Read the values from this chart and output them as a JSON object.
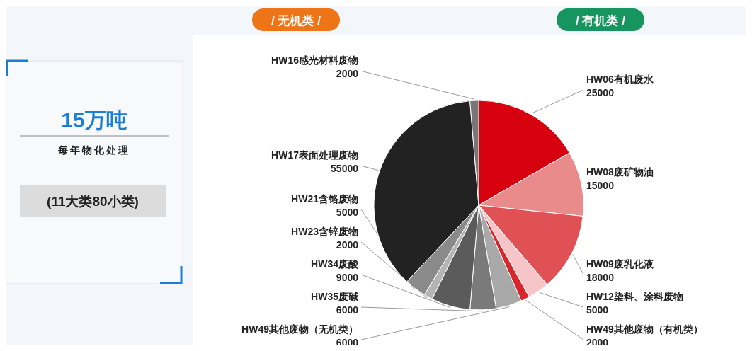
{
  "chart_data": {
    "type": "pie",
    "title": "15万吨",
    "subtitle": "每年物化处理",
    "annotations": [
      "(11大类80小类)",
      "/ 无机类 /",
      "/ 有机类 /"
    ],
    "categories": [
      "HW06有机废水",
      "HW08废矿物油",
      "HW09废乳化液",
      "HW12染料、涂料废物",
      "HW49其他废物（有机类）",
      "HW49其他废物（无机类）",
      "HW35废碱",
      "HW34废酸",
      "HW23含锌废物",
      "HW21含铬废物",
      "HW17表面处理废物",
      "HW16感光材料废物"
    ],
    "values": [
      25000,
      15000,
      18000,
      5000,
      2000,
      6000,
      6000,
      9000,
      2000,
      5000,
      55000,
      2000
    ],
    "colors": [
      "#d7000f",
      "#e98a8b",
      "#e05156",
      "#f6c5c7",
      "#d9262c",
      "#a9a9a9",
      "#7a7a7a",
      "#5b5b5b",
      "#b4b4b4",
      "#8a8a8a",
      "#222222",
      "#777777"
    ],
    "data_labels": true
  }
}
